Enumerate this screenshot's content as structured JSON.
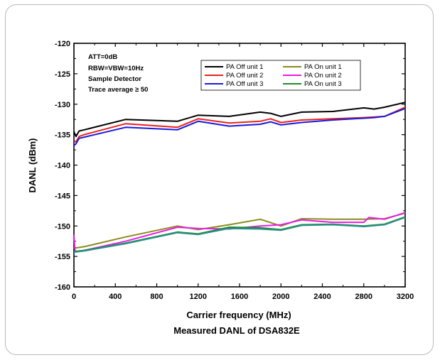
{
  "chart_data": {
    "type": "line",
    "xlabel": "Carrier frequency (MHz)",
    "ylabel": "DANL (dBm)",
    "caption": "Measured DANL of DSA832E",
    "xlim": [
      0,
      3200
    ],
    "ylim": [
      -160,
      -120
    ],
    "xticks": [
      "0",
      "400",
      "800",
      "1200",
      "1600",
      "2000",
      "2400",
      "2800",
      "3200"
    ],
    "yticks": [
      "-120",
      "-125",
      "-130",
      "-135",
      "-140",
      "-145",
      "-150",
      "-155",
      "-160"
    ],
    "grid": false,
    "legend_position": "top-center",
    "annotations": [
      "ATT=0dB",
      "RBW=VBW=10Hz",
      "Sample Detector",
      "Trace average ≥ 50"
    ],
    "series": [
      {
        "name": "PA Off unit 1",
        "color": "#000000",
        "x": [
          0,
          20,
          50,
          100,
          500,
          1000,
          1200,
          1500,
          1800,
          1900,
          2000,
          2200,
          2500,
          2800,
          2900,
          3000,
          3200
        ],
        "y": [
          -134.5,
          -135.3,
          -134.4,
          -134.2,
          -132.5,
          -132.8,
          -131.8,
          -132.0,
          -131.3,
          -131.5,
          -132.0,
          -131.3,
          -131.2,
          -130.6,
          -130.8,
          -130.5,
          -129.7
        ]
      },
      {
        "name": "PA Off unit 2",
        "color": "#e8231c",
        "x": [
          0,
          20,
          50,
          100,
          500,
          1000,
          1200,
          1500,
          1800,
          1900,
          2000,
          2200,
          2500,
          2800,
          2900,
          3000,
          3200
        ],
        "y": [
          -136.0,
          -136.2,
          -135.3,
          -135.0,
          -133.2,
          -133.8,
          -132.4,
          -133.1,
          -132.8,
          -132.4,
          -133.0,
          -132.6,
          -132.4,
          -132.2,
          -132.1,
          -132.0,
          -130.5
        ]
      },
      {
        "name": "PA Off unit 3",
        "color": "#1a1adc",
        "x": [
          0,
          20,
          50,
          100,
          500,
          1000,
          1200,
          1500,
          1800,
          1900,
          2000,
          2200,
          2500,
          2800,
          2900,
          3000,
          3200
        ],
        "y": [
          -136.8,
          -136.5,
          -135.6,
          -135.4,
          -133.8,
          -134.2,
          -132.8,
          -133.6,
          -133.3,
          -132.9,
          -133.4,
          -133.0,
          -132.6,
          -132.3,
          -132.2,
          -132.0,
          -130.7
        ]
      },
      {
        "name": "PA On unit 1",
        "color": "#8b8b1f",
        "x": [
          0,
          20,
          100,
          500,
          1000,
          1200,
          1500,
          1800,
          2000,
          2200,
          2500,
          2800,
          3000,
          3200
        ],
        "y": [
          -153.5,
          -153.6,
          -153.4,
          -151.8,
          -150.0,
          -150.6,
          -149.8,
          -148.9,
          -150.0,
          -148.8,
          -148.9,
          -148.9,
          -148.8,
          -147.9
        ]
      },
      {
        "name": "PA On unit 2",
        "color": "#e81ce8",
        "x": [
          0,
          10,
          20,
          100,
          500,
          1000,
          1200,
          1500,
          1800,
          2000,
          2200,
          2500,
          2800,
          2850,
          3000,
          3200
        ],
        "y": [
          -151.5,
          -154.0,
          -154.2,
          -154.0,
          -152.5,
          -150.2,
          -150.4,
          -150.5,
          -150.0,
          -149.8,
          -149.0,
          -149.4,
          -149.4,
          -148.6,
          -148.9,
          -147.8
        ]
      },
      {
        "name": "PA On unit 3",
        "color": "#1f8a2c",
        "x": [
          0,
          100,
          500,
          1000,
          1200,
          1500,
          1800,
          2000,
          2200,
          2500,
          2800,
          3000,
          3200
        ],
        "y": [
          -154.2,
          -154.0,
          -152.8,
          -151.0,
          -151.3,
          -150.2,
          -150.3,
          -150.6,
          -149.8,
          -149.7,
          -150.0,
          -149.7,
          -148.5
        ]
      },
      {
        "name": "",
        "color": "#2a8f8f",
        "x": [
          0,
          100,
          500,
          1000,
          1200,
          1500,
          1800,
          2000,
          2200,
          2500,
          2800,
          3000,
          3200
        ],
        "y": [
          -154.3,
          -154.1,
          -152.9,
          -151.1,
          -151.4,
          -150.4,
          -150.5,
          -150.7,
          -149.9,
          -149.8,
          -150.1,
          -149.8,
          -148.6
        ]
      }
    ]
  }
}
